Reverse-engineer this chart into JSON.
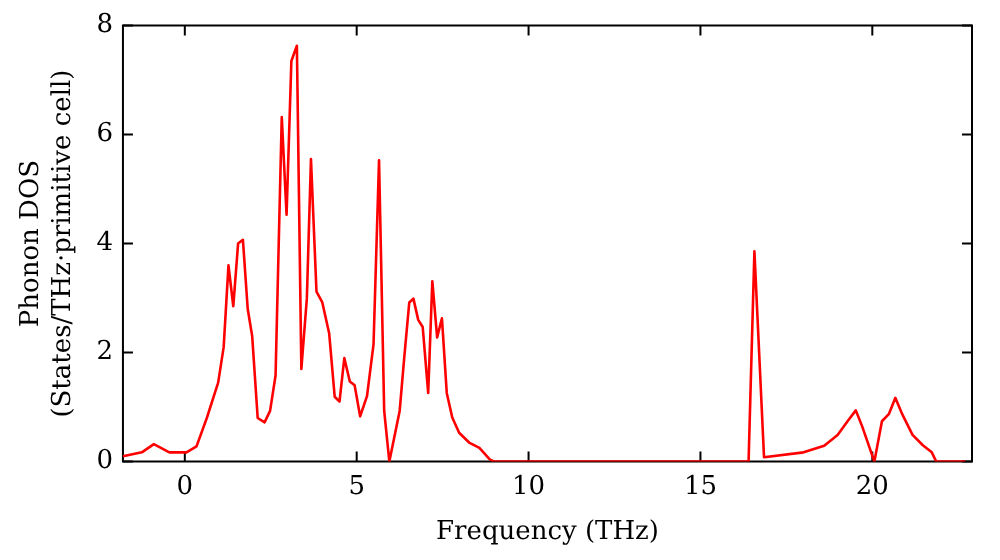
{
  "chart_data": {
    "type": "line",
    "xlabel": "Frequency (THz)",
    "ylabel": "Phonon DOS\n(States/THz·primitive cell)",
    "xlim": [
      -1.8,
      22.9
    ],
    "ylim": [
      0,
      8
    ],
    "xticks": [
      0,
      5,
      10,
      15,
      20
    ],
    "yticks": [
      0,
      2,
      4,
      6,
      8
    ],
    "grid": false,
    "legend": false,
    "marker": "none",
    "line_style": "solid",
    "series": [
      {
        "color": "#ff0000",
        "x": [
          -1.8,
          -1.25,
          -0.9,
          -0.45,
          0.05,
          0.34,
          0.64,
          0.97,
          1.13,
          1.27,
          1.41,
          1.55,
          1.69,
          1.83,
          1.96,
          2.12,
          2.32,
          2.48,
          2.64,
          2.82,
          2.96,
          3.1,
          3.26,
          3.39,
          3.55,
          3.67,
          3.83,
          4.0,
          4.2,
          4.36,
          4.5,
          4.64,
          4.8,
          4.94,
          5.1,
          5.3,
          5.49,
          5.65,
          5.8,
          5.95,
          6.25,
          6.39,
          6.53,
          6.65,
          6.79,
          6.92,
          7.08,
          7.2,
          7.34,
          7.48,
          7.62,
          7.78,
          7.98,
          8.27,
          8.57,
          8.87,
          9.0,
          16.4,
          16.57,
          16.85,
          18.0,
          18.6,
          18.99,
          19.29,
          19.52,
          19.72,
          20.06,
          20.28,
          20.48,
          20.67,
          20.87,
          21.17,
          21.47,
          21.73,
          21.86,
          22.7
        ],
        "values": [
          0.1,
          0.17,
          0.32,
          0.17,
          0.17,
          0.28,
          0.8,
          1.45,
          2.1,
          3.6,
          2.85,
          4.0,
          4.07,
          2.8,
          2.3,
          0.8,
          0.72,
          0.93,
          1.58,
          6.32,
          4.53,
          7.35,
          7.63,
          1.7,
          2.99,
          5.55,
          3.12,
          2.92,
          2.35,
          1.19,
          1.1,
          1.9,
          1.47,
          1.4,
          0.83,
          1.2,
          2.15,
          5.53,
          0.93,
          0,
          0.93,
          1.96,
          2.92,
          2.99,
          2.6,
          2.47,
          1.26,
          3.31,
          2.28,
          2.63,
          1.26,
          0.81,
          0.53,
          0.35,
          0.25,
          0.04,
          0,
          0,
          3.86,
          0.08,
          0.17,
          0.29,
          0.49,
          0.75,
          0.94,
          0.62,
          0,
          0.74,
          0.87,
          1.17,
          0.87,
          0.49,
          0.3,
          0.17,
          0,
          0
        ]
      }
    ]
  }
}
